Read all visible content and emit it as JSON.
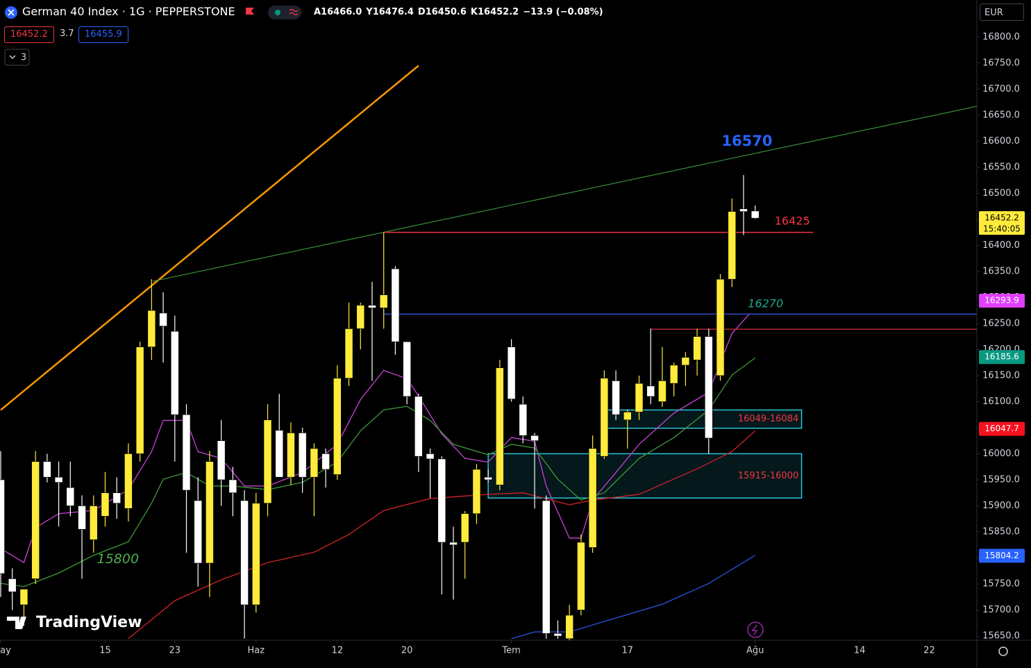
{
  "chart_data": {
    "type": "candlestick",
    "title": "German 40 Index · 1G · PEPPERSTONE",
    "ohlc_labels": [
      "A16466.0",
      "Y16476.4",
      "D16450.6",
      "K16452.2",
      "−13.9 (−0.08%)"
    ],
    "bid": "16452.2",
    "spread": "3.7",
    "ask": "16455.9",
    "indicator_count": "3",
    "currency": "EUR",
    "logo": "TradingView",
    "countdown": "15:40:05",
    "up_color": "#ffeb3b",
    "down_color": "#ffffff",
    "grid": false,
    "xlim": [
      -0.06,
      84.1
    ],
    "ylim": [
      15642,
      16871
    ],
    "xticks": [
      {
        "value": 0,
        "label": "ay"
      },
      {
        "value": 9,
        "label": "15"
      },
      {
        "value": 15,
        "label": "23"
      },
      {
        "value": 22,
        "label": "Haz"
      },
      {
        "value": 29,
        "label": "12"
      },
      {
        "value": 35,
        "label": "20"
      },
      {
        "value": 44,
        "label": "Tem"
      },
      {
        "value": 54,
        "label": "17"
      },
      {
        "value": 65,
        "label": "Ağu"
      },
      {
        "value": 74,
        "label": "14"
      },
      {
        "value": 80,
        "label": "22"
      }
    ],
    "yticks": [
      {
        "value": 15650,
        "label": "15650.0"
      },
      {
        "value": 15700,
        "label": "15700.0"
      },
      {
        "value": 15750,
        "label": "15750.0"
      },
      {
        "value": 15800,
        "label": "15800.0"
      },
      {
        "value": 15850,
        "label": "15850.0"
      },
      {
        "value": 15900,
        "label": "15900.0"
      },
      {
        "value": 15950,
        "label": "15950.0"
      },
      {
        "value": 16000,
        "label": "16000.0"
      },
      {
        "value": 16050,
        "label": "16050.0"
      },
      {
        "value": 16100,
        "label": "16100.0"
      },
      {
        "value": 16150,
        "label": "16150.0"
      },
      {
        "value": 16200,
        "label": "16200.0"
      },
      {
        "value": 16250,
        "label": "16250.0"
      },
      {
        "value": 16300,
        "label": "16300.0"
      },
      {
        "value": 16350,
        "label": "16350.0"
      },
      {
        "value": 16400,
        "label": "16400.0"
      },
      {
        "value": 16450,
        "label": "16450.0"
      },
      {
        "value": 16500,
        "label": "16500.0"
      },
      {
        "value": 16550,
        "label": "16550.0"
      },
      {
        "value": 16600,
        "label": "16600.0"
      },
      {
        "value": 16650,
        "label": "16650.0"
      },
      {
        "value": 16700,
        "label": "16700.0"
      },
      {
        "value": 16750,
        "label": "16750.0"
      },
      {
        "value": 16800,
        "label": "16800.0"
      }
    ],
    "open": [
      15950,
      15760,
      15710,
      15760,
      15985,
      15955,
      15935,
      15900,
      15835,
      15880,
      15925,
      15895,
      16000,
      16205,
      16270,
      16235,
      16075,
      15910,
      15790,
      16025,
      15950,
      15910,
      15710,
      15905,
      16045,
      15955,
      16040,
      15955,
      16000,
      15960,
      16145,
      16240,
      16285,
      16280,
      16355,
      16215,
      16110,
      16000,
      15990,
      15830,
      15830,
      15885,
      15955,
      15940,
      16205,
      16095,
      16035,
      15910,
      15655,
      15645,
      15700,
      15820,
      15995,
      16140,
      16065,
      16080,
      16130,
      16100,
      16135,
      16170,
      16180,
      16225,
      16150,
      16335,
      16470,
      16466.0
    ],
    "high": [
      16005,
      15780,
      15740,
      16005,
      16000,
      15985,
      15985,
      15920,
      15920,
      15965,
      15955,
      16020,
      16215,
      16335,
      16310,
      16265,
      16095,
      15955,
      16005,
      16065,
      15975,
      15930,
      15925,
      16095,
      16115,
      16060,
      16050,
      16020,
      16010,
      16170,
      16290,
      16290,
      16330,
      16425,
      16360,
      16215,
      16115,
      16010,
      15995,
      15860,
      15890,
      15980,
      15970,
      16180,
      16220,
      16110,
      16040,
      15920,
      15680,
      15710,
      15845,
      16035,
      16160,
      16160,
      16085,
      16150,
      16240,
      16205,
      16175,
      16195,
      16240,
      16240,
      16345,
      16490,
      16535,
      16476.4
    ],
    "low": [
      15725,
      15700,
      15670,
      15750,
      15945,
      15860,
      15880,
      15760,
      15810,
      15860,
      15875,
      15870,
      15985,
      16180,
      16175,
      15985,
      15810,
      15745,
      15725,
      15900,
      15880,
      15645,
      15695,
      15880,
      15955,
      15940,
      15925,
      15880,
      15935,
      15950,
      16130,
      16200,
      16140,
      16240,
      16190,
      16095,
      15965,
      15915,
      15730,
      15720,
      15760,
      15865,
      15945,
      15930,
      16100,
      16020,
      15895,
      15645,
      15645,
      15640,
      15690,
      15810,
      15990,
      16065,
      16010,
      16065,
      16095,
      16090,
      16110,
      16130,
      16150,
      16000,
      16140,
      16320,
      16420,
      16450.6
    ],
    "close": [
      15770,
      15735,
      15740,
      15985,
      15955,
      15945,
      15900,
      15855,
      15900,
      15925,
      15905,
      16000,
      16205,
      16275,
      16245,
      16075,
      15930,
      15790,
      15985,
      15950,
      15925,
      15710,
      15905,
      16065,
      15955,
      16040,
      15955,
      16010,
      15970,
      16145,
      16240,
      16285,
      16280,
      16305,
      16215,
      16110,
      15995,
      15990,
      15830,
      15825,
      15885,
      15970,
      15950,
      16165,
      16105,
      16035,
      16025,
      15655,
      15650,
      15690,
      15830,
      16010,
      16145,
      16075,
      16080,
      16135,
      16110,
      16140,
      16170,
      16185,
      16225,
      16030,
      16335,
      16465,
      16465,
      16452.2
    ],
    "series": [
      {
        "color": "#c844d8",
        "x": [
          0,
          2,
          3,
          5,
          8,
          11,
          13,
          14,
          16,
          17,
          19,
          21,
          23,
          26,
          29,
          31,
          33,
          35,
          36,
          38,
          40,
          42,
          44,
          46,
          47,
          49,
          50,
          51,
          53,
          55,
          58,
          61,
          63,
          64.5
        ],
        "values": [
          15818,
          15791,
          15858,
          15885,
          15891,
          15931,
          16004,
          16064,
          16064,
          16004,
          15991,
          15938,
          15938,
          15964,
          16018,
          16104,
          16160,
          16144,
          16111,
          16038,
          15991,
          15984,
          16031,
          16024,
          15938,
          15838,
          15838,
          15911,
          15964,
          16018,
          16078,
          16118,
          16231,
          16268
        ]
      },
      {
        "color": "#3f9b3a",
        "x": [
          0,
          2,
          5,
          8,
          11,
          13,
          14,
          16,
          18,
          20,
          23,
          26,
          29,
          31,
          33,
          35,
          37,
          39,
          42,
          44,
          46,
          48,
          50,
          52,
          55,
          58,
          61,
          63,
          65
        ],
        "values": [
          15751,
          15745,
          15771,
          15805,
          15831,
          15905,
          15951,
          15964,
          15938,
          15938,
          15931,
          15945,
          15984,
          16044,
          16084,
          16091,
          16064,
          16018,
          15998,
          16018,
          16011,
          15951,
          15911,
          15925,
          15991,
          16031,
          16084,
          16151,
          16184
        ]
      },
      {
        "color": "#d3222a",
        "x": [
          11,
          15,
          19,
          23,
          27,
          30,
          33,
          37,
          42,
          45,
          49,
          51,
          55,
          60,
          63,
          65
        ],
        "values": [
          15645,
          15718,
          15758,
          15791,
          15811,
          15845,
          15891,
          15914,
          15922,
          15925,
          15902,
          15911,
          15922,
          15971,
          16004,
          16044
        ]
      },
      {
        "color": "#2955e0",
        "x": [
          44,
          46,
          49,
          52,
          57,
          61,
          65
        ],
        "values": [
          15645,
          15658,
          15658,
          15678,
          15711,
          15751,
          15805
        ]
      }
    ],
    "trend_lines": [
      {
        "x": [
          0,
          36
        ],
        "y": [
          16084,
          16745
        ],
        "color": "#ff9800",
        "width": 2.5
      },
      {
        "x": [
          13.1,
          84.1
        ],
        "y": [
          16331,
          16667
        ],
        "color": "#3a8f3a",
        "width": 1.2
      }
    ],
    "levels": [
      {
        "value": 16425,
        "x": [
          33,
          70
        ],
        "color": "#f23645"
      },
      {
        "value": 16268,
        "x": [
          33,
          84.1
        ],
        "color": "#2f4fd0"
      },
      {
        "value": 16239,
        "x": [
          56,
          84.1
        ],
        "color": "#b22833"
      }
    ],
    "zones": [
      {
        "label": "16049-16084",
        "low": 16049,
        "high": 16084,
        "x": [
          52.1,
          69
        ],
        "color": "#26c6da",
        "text_color": "#f23645"
      },
      {
        "label": "15915-16000",
        "low": 15915,
        "high": 16000,
        "x": [
          42,
          69
        ],
        "color": "#26c6da",
        "text_color": "#f23645"
      }
    ],
    "annotations": [
      {
        "text": "16570",
        "x": 64.3,
        "y": 16599,
        "color": "#2962ff",
        "size": 21,
        "weight": "bold",
        "style": "normal"
      },
      {
        "text": "16425",
        "x": 68.2,
        "y": 16446,
        "color": "#f23645",
        "size": 16,
        "weight": "normal",
        "style": "normal"
      },
      {
        "text": "16270",
        "x": 65.9,
        "y": 16287,
        "color": "#1fa78a",
        "size": 16,
        "weight": "normal",
        "style": "italic"
      },
      {
        "text": "15800",
        "x": 10.1,
        "y": 15797,
        "color": "#4caf50",
        "size": 19,
        "weight": "normal",
        "style": "italic"
      }
    ],
    "price_tags": [
      {
        "value": 16452.2,
        "color": "#ffeb3b",
        "text_color": "#000000"
      },
      {
        "value": 16293.9,
        "color": "#e040fb",
        "text_color": "#ffffff"
      },
      {
        "value": 16185.6,
        "color": "#089981",
        "text_color": "#ffffff"
      },
      {
        "value": 16047.7,
        "color": "#f7121e",
        "text_color": "#ffffff"
      },
      {
        "value": 15804.2,
        "color": "#2962ff",
        "text_color": "#ffffff"
      }
    ]
  }
}
